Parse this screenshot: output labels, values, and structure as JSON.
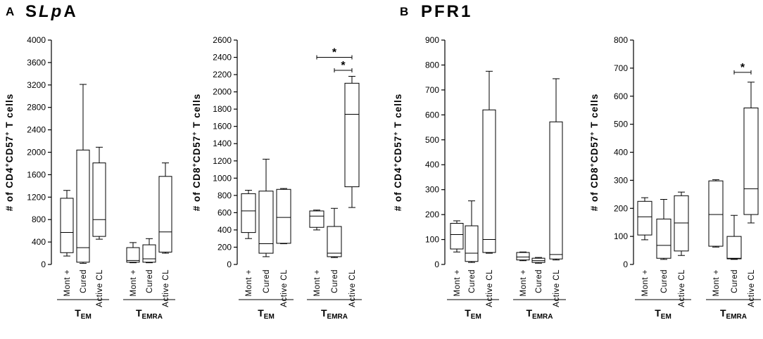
{
  "panels": {
    "A": {
      "letter": "A",
      "title_main": "S",
      "title_italic": "Lp",
      "title_end": "A"
    },
    "B": {
      "letter": "B",
      "title": "PFR1"
    }
  },
  "chart_data": [
    {
      "type": "box",
      "panel": "A",
      "ylabel": {
        "prefix": "# of CD4",
        "sup1": "+",
        "mid": "CD57",
        "sup2": "+",
        "suffix": " T cells"
      },
      "ylim": [
        0,
        4000
      ],
      "yticks": [
        0,
        400,
        800,
        1200,
        1600,
        2000,
        2400,
        2800,
        3200,
        3600,
        4000
      ],
      "groups": [
        {
          "main": "T",
          "sub": "EM",
          "categories": [
            {
              "label": "Mont +",
              "min": 150,
              "q1": 210,
              "median": 570,
              "q3": 1180,
              "max": 1320
            },
            {
              "label": "Cured",
              "min": 20,
              "q1": 40,
              "median": 300,
              "q3": 2040,
              "max": 3210
            },
            {
              "label": "Active CL",
              "min": 450,
              "q1": 500,
              "median": 800,
              "q3": 1810,
              "max": 2090
            }
          ]
        },
        {
          "main": "T",
          "sub": "EMRA",
          "categories": [
            {
              "label": "Mont +",
              "min": 30,
              "q1": 40,
              "median": 70,
              "q3": 300,
              "max": 390
            },
            {
              "label": "Cured",
              "min": 30,
              "q1": 40,
              "median": 100,
              "q3": 350,
              "max": 460
            },
            {
              "label": "Active CL",
              "min": 200,
              "q1": 220,
              "median": 580,
              "q3": 1570,
              "max": 1810
            }
          ]
        }
      ],
      "significance": []
    },
    {
      "type": "box",
      "panel": "A",
      "ylabel": {
        "prefix": "# of CD8",
        "sup1": "+",
        "mid": "CD57",
        "sup2": "+",
        "suffix": " T cells"
      },
      "ylim": [
        0,
        2600
      ],
      "yticks": [
        0,
        200,
        400,
        600,
        800,
        1000,
        1200,
        1400,
        1600,
        1800,
        2000,
        2200,
        2400,
        2600
      ],
      "groups": [
        {
          "main": "T",
          "sub": "EM",
          "categories": [
            {
              "label": "Mont +",
              "min": 300,
              "q1": 370,
              "median": 620,
              "q3": 820,
              "max": 860
            },
            {
              "label": "Cured",
              "min": 90,
              "q1": 130,
              "median": 240,
              "q3": 850,
              "max": 1220
            },
            {
              "label": "Active CL",
              "min": 240,
              "q1": 245,
              "median": 545,
              "q3": 870,
              "max": 880
            }
          ]
        },
        {
          "main": "T",
          "sub": "EMRA",
          "categories": [
            {
              "label": "Mont +",
              "min": 400,
              "q1": 430,
              "median": 560,
              "q3": 620,
              "max": 630
            },
            {
              "label": "Cured",
              "min": 80,
              "q1": 90,
              "median": 130,
              "q3": 440,
              "max": 650
            },
            {
              "label": "Active CL",
              "min": 660,
              "q1": 900,
              "median": 1740,
              "q3": 2100,
              "max": 2180
            }
          ]
        }
      ],
      "significance": [
        {
          "from": [
            1,
            0
          ],
          "to": [
            1,
            2
          ],
          "label": "*",
          "y": 2400
        },
        {
          "from": [
            1,
            1
          ],
          "to": [
            1,
            2
          ],
          "label": "*",
          "y": 2250
        }
      ]
    },
    {
      "type": "box",
      "panel": "B",
      "ylabel": {
        "prefix": "# of CD4",
        "sup1": "+",
        "mid": "CD57",
        "sup2": "+",
        "suffix": " T cells"
      },
      "ylim": [
        0,
        900
      ],
      "yticks": [
        0,
        100,
        200,
        300,
        400,
        500,
        600,
        700,
        800,
        900
      ],
      "groups": [
        {
          "main": "T",
          "sub": "EM",
          "categories": [
            {
              "label": "Mont +",
              "min": 50,
              "q1": 62,
              "median": 120,
              "q3": 165,
              "max": 175
            },
            {
              "label": "Cured",
              "min": 8,
              "q1": 12,
              "median": 45,
              "q3": 155,
              "max": 255
            },
            {
              "label": "Active CL",
              "min": 45,
              "q1": 48,
              "median": 100,
              "q3": 620,
              "max": 775
            }
          ]
        },
        {
          "main": "T",
          "sub": "EMRA",
          "categories": [
            {
              "label": "Mont +",
              "min": 15,
              "q1": 18,
              "median": 30,
              "q3": 48,
              "max": 50
            },
            {
              "label": "Cured",
              "min": 5,
              "q1": 8,
              "median": 15,
              "q3": 25,
              "max": 28
            },
            {
              "label": "Active CL",
              "min": 18,
              "q1": 22,
              "median": 40,
              "q3": 572,
              "max": 745
            }
          ]
        }
      ],
      "significance": []
    },
    {
      "type": "box",
      "panel": "B",
      "ylabel": {
        "prefix": "# of CD8",
        "sup1": "+",
        "mid": "CD57",
        "sup2": "+",
        "suffix": " T cells"
      },
      "ylim": [
        0,
        800
      ],
      "yticks": [
        0,
        100,
        200,
        300,
        400,
        500,
        600,
        700,
        800
      ],
      "groups": [
        {
          "main": "T",
          "sub": "EM",
          "categories": [
            {
              "label": "Mont +",
              "min": 88,
              "q1": 105,
              "median": 170,
              "q3": 225,
              "max": 238
            },
            {
              "label": "Cured",
              "min": 18,
              "q1": 22,
              "median": 68,
              "q3": 162,
              "max": 232
            },
            {
              "label": "Active CL",
              "min": 32,
              "q1": 48,
              "median": 148,
              "q3": 245,
              "max": 258
            }
          ]
        },
        {
          "main": "T",
          "sub": "EMRA",
          "categories": [
            {
              "label": "Mont +",
              "min": 62,
              "q1": 65,
              "median": 178,
              "q3": 298,
              "max": 302
            },
            {
              "label": "Cured",
              "min": 18,
              "q1": 20,
              "median": 22,
              "q3": 100,
              "max": 175
            },
            {
              "label": "Active CL",
              "min": 148,
              "q1": 178,
              "median": 270,
              "q3": 558,
              "max": 650
            }
          ]
        }
      ],
      "significance": [
        {
          "from": [
            1,
            1
          ],
          "to": [
            1,
            2
          ],
          "label": "*",
          "y": 685
        }
      ]
    }
  ]
}
